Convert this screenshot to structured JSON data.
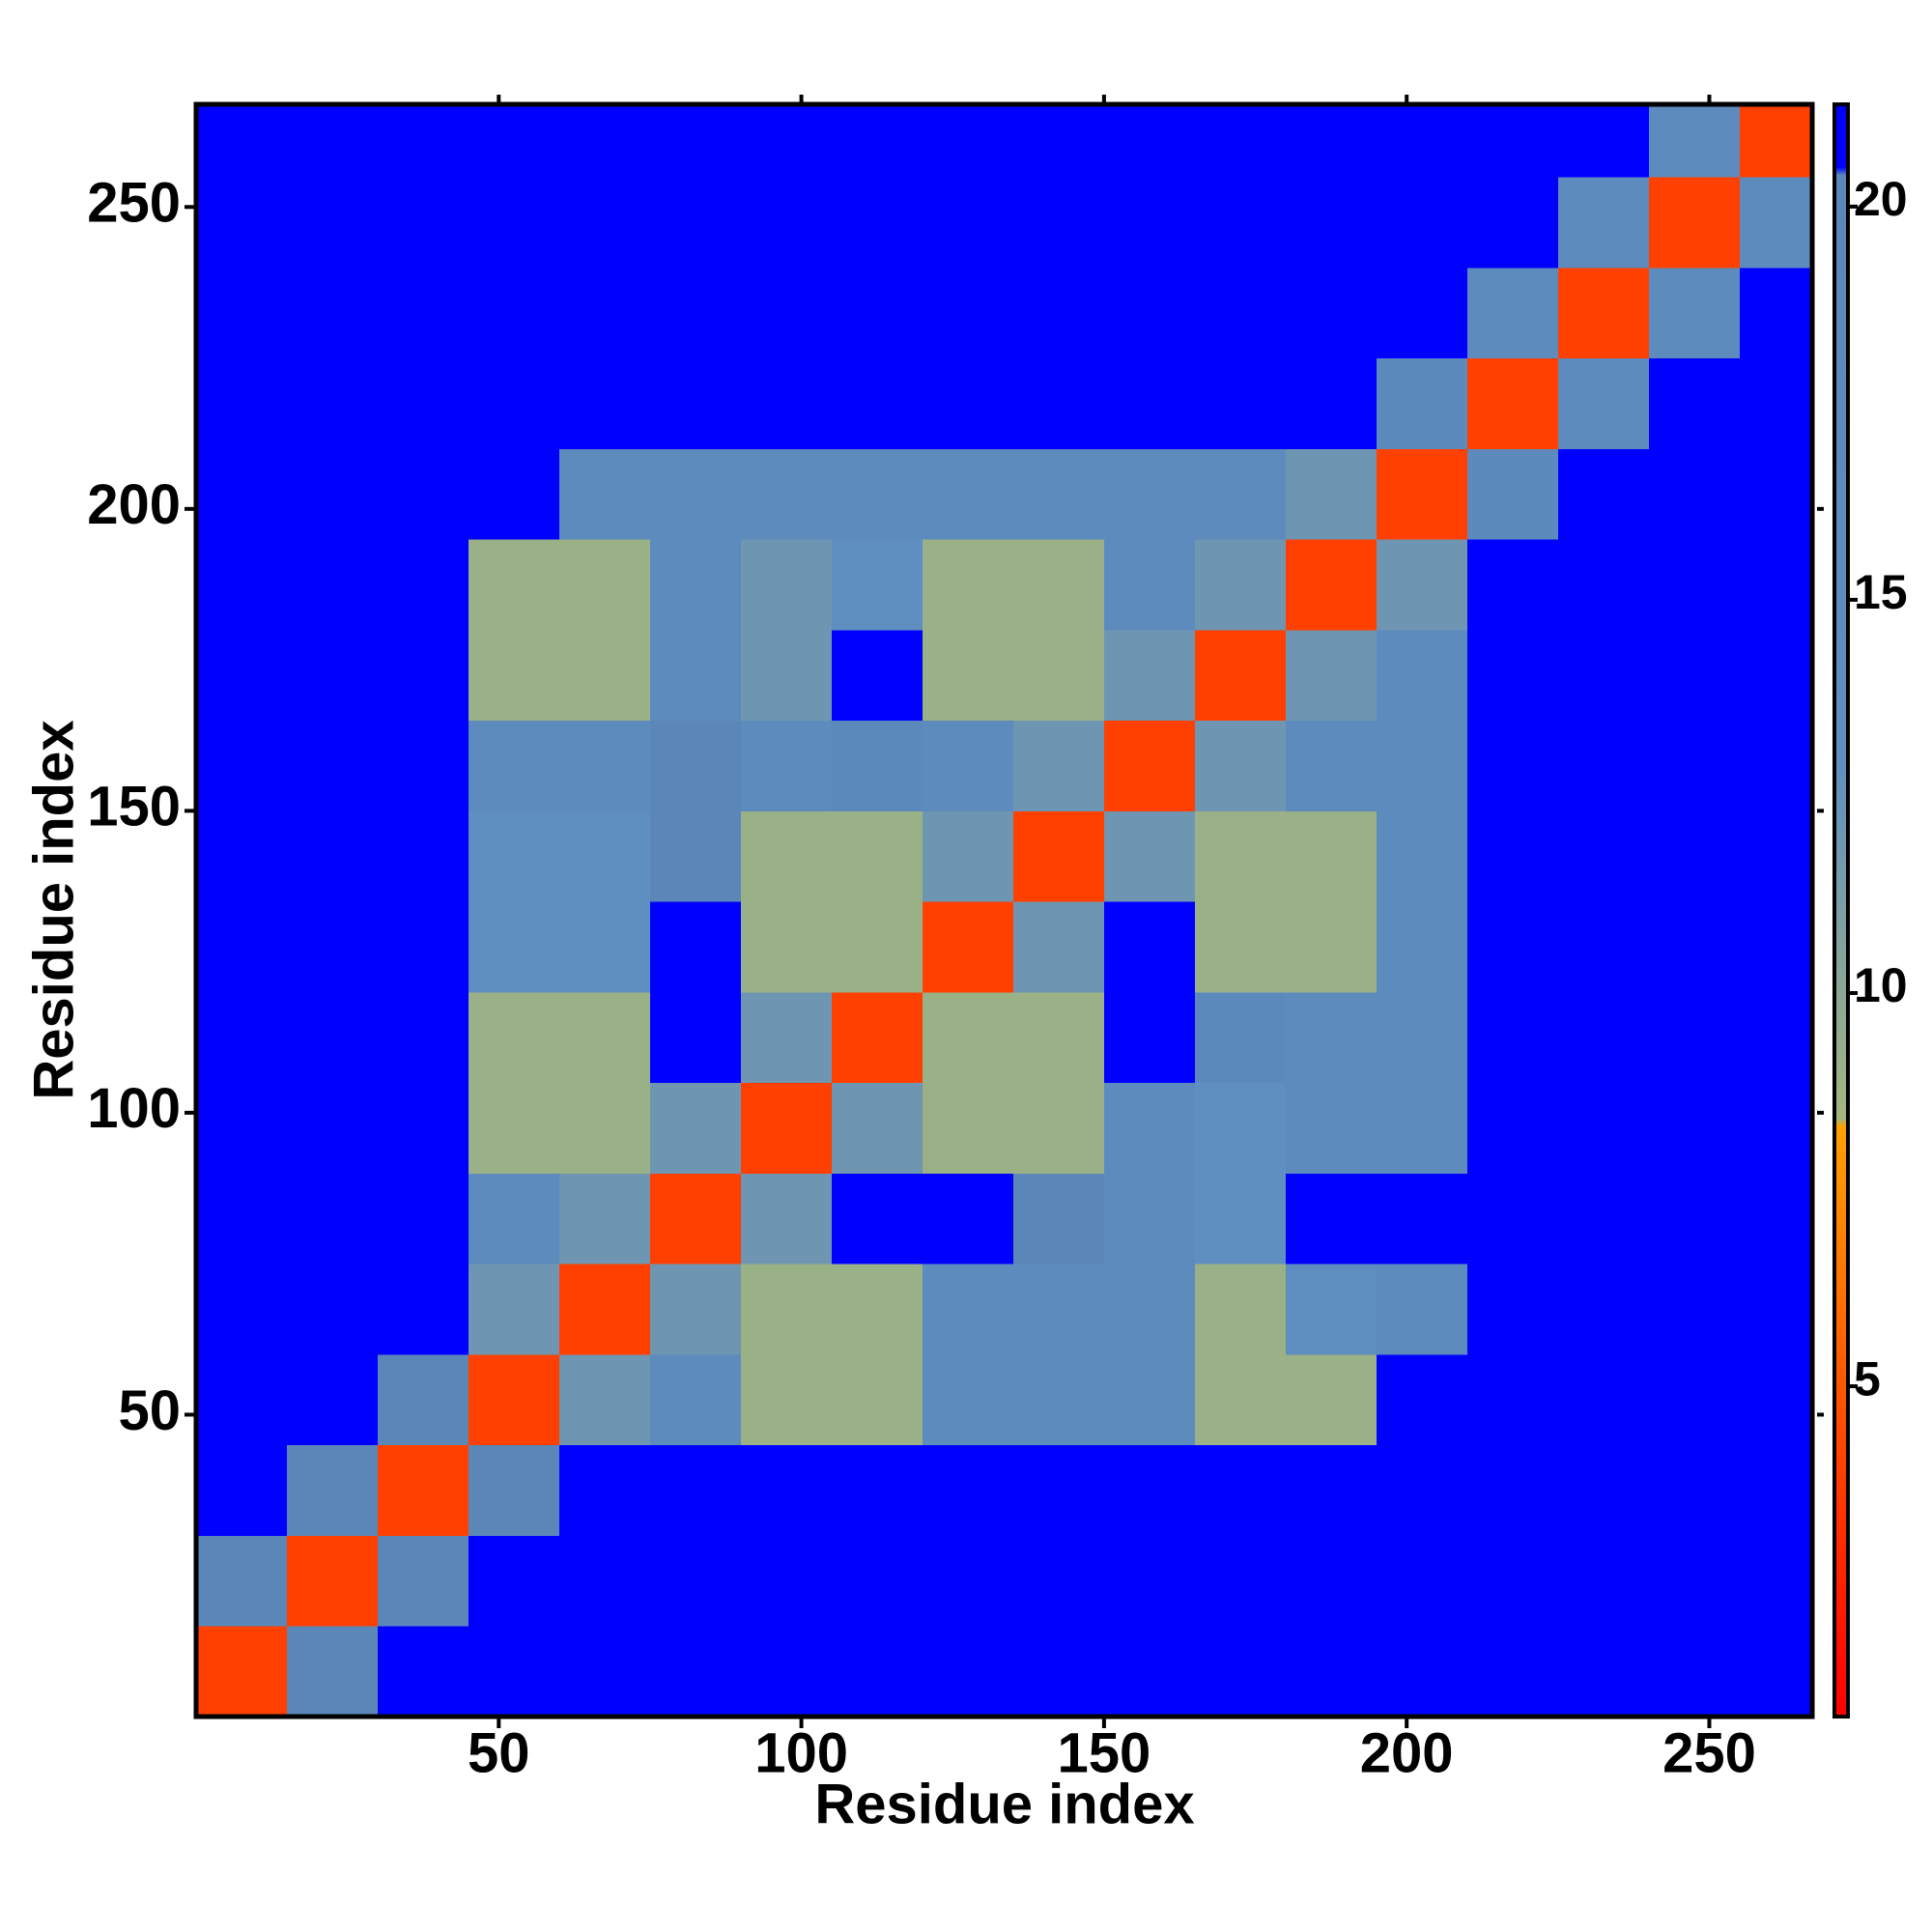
{
  "chart_data": {
    "type": "heatmap",
    "xlabel": "Residue index",
    "ylabel": "Residue index",
    "xbins": [
      0,
      15,
      30,
      45,
      60,
      75,
      90,
      105,
      120,
      135,
      150,
      165,
      180,
      195,
      210,
      225,
      240,
      255,
      267
    ],
    "ybins": [
      0,
      15,
      30,
      45,
      60,
      75,
      90,
      105,
      120,
      135,
      150,
      165,
      180,
      195,
      210,
      225,
      240,
      255,
      267
    ],
    "xlim": [
      0,
      267
    ],
    "ylim": [
      0,
      267
    ],
    "xticks": [
      50,
      100,
      150,
      200,
      250
    ],
    "yticks": [
      50,
      100,
      150,
      200,
      250
    ],
    "values": [
      [
        4,
        20,
        21,
        21,
        21,
        21,
        21,
        21,
        21,
        21,
        21,
        21,
        21,
        21,
        21,
        21,
        21,
        21
      ],
      [
        20,
        4,
        20,
        21,
        21,
        21,
        21,
        21,
        21,
        21,
        21,
        21,
        21,
        21,
        21,
        21,
        21,
        21
      ],
      [
        21,
        20,
        4,
        20,
        21,
        21,
        21,
        21,
        21,
        21,
        21,
        21,
        21,
        21,
        21,
        21,
        21,
        21
      ],
      [
        21,
        21,
        20,
        4,
        12,
        16,
        9,
        9,
        16,
        16,
        16,
        9,
        9,
        21,
        21,
        21,
        21,
        21
      ],
      [
        21,
        21,
        21,
        12,
        4,
        12,
        9,
        9,
        16,
        16,
        16,
        9,
        14,
        16,
        21,
        21,
        21,
        21
      ],
      [
        21,
        21,
        21,
        16,
        12,
        4,
        12,
        21,
        21,
        20,
        16,
        13,
        21,
        21,
        21,
        21,
        21,
        21
      ],
      [
        21,
        21,
        21,
        9,
        9,
        12,
        4,
        12,
        9,
        9,
        16,
        13,
        16,
        16,
        21,
        21,
        21,
        21
      ],
      [
        21,
        21,
        21,
        9,
        9,
        21,
        12,
        4,
        9,
        9,
        21,
        18,
        16,
        16,
        21,
        21,
        21,
        21
      ],
      [
        21,
        21,
        21,
        13,
        13,
        21,
        9,
        9,
        4,
        12,
        21,
        9,
        9,
        16,
        21,
        21,
        21,
        21
      ],
      [
        21,
        21,
        21,
        13,
        13,
        20,
        9,
        9,
        12,
        4,
        12,
        9,
        9,
        16,
        21,
        21,
        21,
        21
      ],
      [
        21,
        21,
        21,
        16,
        16,
        20,
        16,
        18,
        16,
        12,
        4,
        12,
        16,
        16,
        21,
        21,
        21,
        21
      ],
      [
        21,
        21,
        21,
        9,
        9,
        16,
        12,
        21,
        9,
        9,
        12,
        4,
        12,
        16,
        21,
        21,
        21,
        21
      ],
      [
        21,
        21,
        21,
        9,
        9,
        16,
        12,
        13,
        9,
        9,
        16,
        12,
        4,
        12,
        21,
        21,
        21,
        21
      ],
      [
        21,
        21,
        21,
        21,
        16,
        16,
        16,
        16,
        16,
        16,
        16,
        16,
        12,
        4,
        17,
        21,
        21,
        21
      ],
      [
        21,
        21,
        21,
        21,
        21,
        21,
        21,
        21,
        21,
        21,
        21,
        21,
        21,
        17,
        4,
        16,
        21,
        21
      ],
      [
        21,
        21,
        21,
        21,
        21,
        21,
        21,
        21,
        21,
        21,
        21,
        21,
        21,
        21,
        16,
        4,
        16,
        21
      ],
      [
        21,
        21,
        21,
        21,
        21,
        21,
        21,
        21,
        21,
        21,
        21,
        21,
        21,
        21,
        21,
        16,
        4,
        16
      ],
      [
        21,
        21,
        21,
        21,
        21,
        21,
        21,
        21,
        21,
        21,
        21,
        21,
        21,
        21,
        21,
        21,
        16,
        4
      ]
    ],
    "colorbar": {
      "lim": [
        0.8,
        21.3
      ],
      "ticks": [
        5,
        10,
        15,
        20
      ]
    },
    "colorscale": [
      {
        "value": 0.8,
        "color": "#ff0000"
      },
      {
        "value": 3,
        "color": "#ff2a00"
      },
      {
        "value": 8.3,
        "color": "#ffa000"
      },
      {
        "value": 8.4,
        "color": "#a3b57f"
      },
      {
        "value": 13,
        "color": "#5f8ec0"
      },
      {
        "value": 20.4,
        "color": "#5b87b8"
      },
      {
        "value": 20.5,
        "color": "#0000ff"
      },
      {
        "value": 21.3,
        "color": "#0000ff"
      }
    ]
  }
}
